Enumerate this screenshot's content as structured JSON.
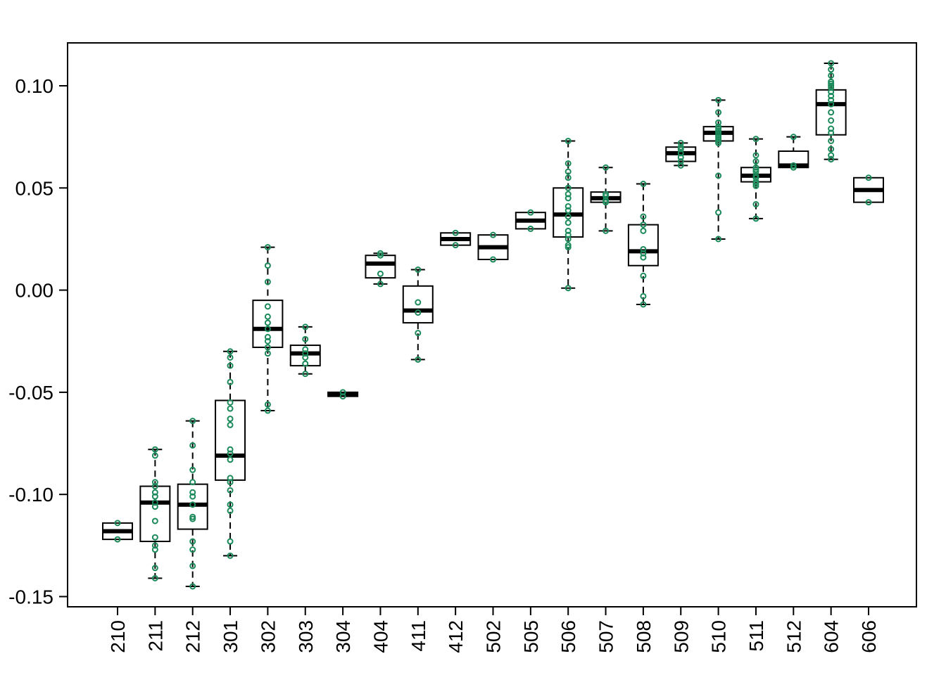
{
  "chart_data": {
    "type": "box",
    "title": "",
    "xlabel": "",
    "ylabel": "",
    "ylim": [
      -0.155,
      0.121
    ],
    "yticks": [
      -0.15,
      -0.1,
      -0.05,
      0.0,
      0.05,
      0.1
    ],
    "ytick_labels": [
      "-0.15",
      "-0.10",
      "-0.05",
      "0.00",
      "0.05",
      "0.10"
    ],
    "grid": false,
    "colors": {
      "box": "#000000",
      "points": "#1b8a5a"
    },
    "categories": [
      "210",
      "211",
      "212",
      "301",
      "302",
      "303",
      "304",
      "404",
      "411",
      "412",
      "502",
      "505",
      "506",
      "507",
      "508",
      "509",
      "510",
      "511",
      "512",
      "604",
      "606"
    ],
    "boxes": [
      {
        "low": -0.122,
        "q1": -0.122,
        "median": -0.118,
        "q3": -0.114,
        "high": -0.114,
        "points": [
          -0.122,
          -0.114
        ]
      },
      {
        "low": -0.141,
        "q1": -0.123,
        "median": -0.104,
        "q3": -0.096,
        "high": -0.078,
        "points": [
          -0.141,
          -0.136,
          -0.127,
          -0.125,
          -0.121,
          -0.113,
          -0.106,
          -0.104,
          -0.101,
          -0.099,
          -0.096,
          -0.094,
          -0.081,
          -0.078
        ]
      },
      {
        "low": -0.145,
        "q1": -0.117,
        "median": -0.105,
        "q3": -0.095,
        "high": -0.064,
        "points": [
          -0.145,
          -0.135,
          -0.127,
          -0.123,
          -0.112,
          -0.111,
          -0.105,
          -0.101,
          -0.099,
          -0.094,
          -0.088,
          -0.076,
          -0.064
        ]
      },
      {
        "low": -0.13,
        "q1": -0.093,
        "median": -0.081,
        "q3": -0.054,
        "high": -0.03,
        "points": [
          -0.13,
          -0.123,
          -0.108,
          -0.105,
          -0.098,
          -0.094,
          -0.092,
          -0.083,
          -0.08,
          -0.078,
          -0.066,
          -0.063,
          -0.058,
          -0.055,
          -0.045,
          -0.037,
          -0.033,
          -0.03
        ]
      },
      {
        "low": -0.059,
        "q1": -0.028,
        "median": -0.019,
        "q3": -0.005,
        "high": 0.021,
        "points": [
          -0.059,
          -0.056,
          -0.031,
          -0.028,
          -0.025,
          -0.023,
          -0.019,
          -0.016,
          -0.013,
          -0.008,
          0.004,
          0.012,
          0.021
        ]
      },
      {
        "low": -0.041,
        "q1": -0.037,
        "median": -0.031,
        "q3": -0.027,
        "high": -0.018,
        "points": [
          -0.041,
          -0.036,
          -0.033,
          -0.031,
          -0.029,
          -0.024,
          -0.018
        ]
      },
      {
        "low": -0.052,
        "q1": -0.052,
        "median": -0.051,
        "q3": -0.05,
        "high": -0.05,
        "points": [
          -0.052,
          -0.05
        ]
      },
      {
        "low": 0.003,
        "q1": 0.006,
        "median": 0.013,
        "q3": 0.017,
        "high": 0.018,
        "points": [
          0.003,
          0.008,
          0.017,
          0.018
        ]
      },
      {
        "low": -0.034,
        "q1": -0.016,
        "median": -0.01,
        "q3": 0.002,
        "high": 0.01,
        "points": [
          -0.034,
          -0.021,
          -0.011,
          -0.006,
          0.01
        ]
      },
      {
        "low": 0.022,
        "q1": 0.022,
        "median": 0.025,
        "q3": 0.028,
        "high": 0.028,
        "points": [
          0.022,
          0.028
        ]
      },
      {
        "low": 0.015,
        "q1": 0.015,
        "median": 0.021,
        "q3": 0.027,
        "high": 0.027,
        "points": [
          0.015,
          0.027
        ]
      },
      {
        "low": 0.03,
        "q1": 0.03,
        "median": 0.034,
        "q3": 0.038,
        "high": 0.038,
        "points": [
          0.03,
          0.038
        ]
      },
      {
        "low": 0.001,
        "q1": 0.026,
        "median": 0.037,
        "q3": 0.05,
        "high": 0.073,
        "points": [
          0.001,
          0.021,
          0.022,
          0.025,
          0.027,
          0.029,
          0.033,
          0.036,
          0.039,
          0.041,
          0.045,
          0.047,
          0.05,
          0.055,
          0.058,
          0.062,
          0.073
        ]
      },
      {
        "low": 0.029,
        "q1": 0.043,
        "median": 0.045,
        "q3": 0.048,
        "high": 0.06,
        "points": [
          0.029,
          0.043,
          0.044,
          0.046,
          0.047,
          0.06
        ]
      },
      {
        "low": -0.007,
        "q1": 0.012,
        "median": 0.019,
        "q3": 0.032,
        "high": 0.052,
        "points": [
          -0.007,
          -0.003,
          0.007,
          0.016,
          0.018,
          0.02,
          0.029,
          0.032,
          0.036,
          0.052
        ]
      },
      {
        "low": 0.061,
        "q1": 0.063,
        "median": 0.067,
        "q3": 0.07,
        "high": 0.072,
        "points": [
          0.061,
          0.063,
          0.065,
          0.067,
          0.069,
          0.07,
          0.072
        ]
      },
      {
        "low": 0.025,
        "q1": 0.073,
        "median": 0.077,
        "q3": 0.08,
        "high": 0.093,
        "points": [
          0.025,
          0.038,
          0.056,
          0.072,
          0.073,
          0.074,
          0.075,
          0.076,
          0.077,
          0.078,
          0.079,
          0.08,
          0.082,
          0.087,
          0.093
        ]
      },
      {
        "low": 0.035,
        "q1": 0.053,
        "median": 0.056,
        "q3": 0.06,
        "high": 0.074,
        "points": [
          0.035,
          0.042,
          0.051,
          0.052,
          0.053,
          0.055,
          0.056,
          0.058,
          0.059,
          0.06,
          0.063,
          0.066,
          0.074
        ]
      },
      {
        "low": 0.06,
        "q1": 0.06,
        "median": 0.061,
        "q3": 0.068,
        "high": 0.075,
        "points": [
          0.06,
          0.061,
          0.075
        ]
      },
      {
        "low": 0.064,
        "q1": 0.076,
        "median": 0.091,
        "q3": 0.098,
        "high": 0.111,
        "points": [
          0.064,
          0.066,
          0.069,
          0.073,
          0.077,
          0.079,
          0.083,
          0.087,
          0.091,
          0.093,
          0.095,
          0.097,
          0.099,
          0.1,
          0.101,
          0.102,
          0.105,
          0.108,
          0.111
        ]
      },
      {
        "low": 0.043,
        "q1": 0.043,
        "median": 0.049,
        "q3": 0.055,
        "high": 0.055,
        "points": [
          0.043,
          0.055
        ]
      }
    ]
  }
}
